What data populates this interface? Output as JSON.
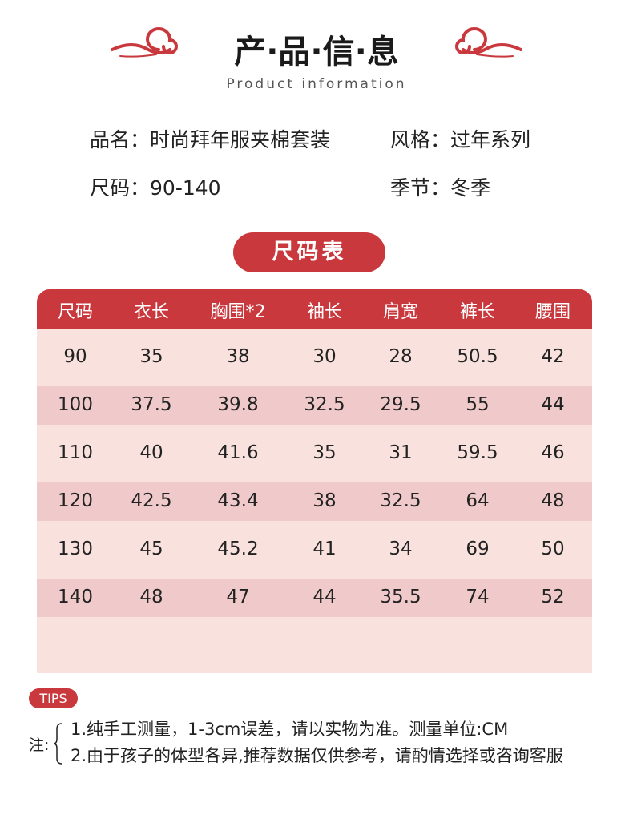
{
  "header": {
    "title": "产·品·信·息",
    "subtitle": "Product information"
  },
  "info": [
    {
      "label": "品名：",
      "value": "时尚拜年服夹棉套装"
    },
    {
      "label": "风格：",
      "value": "过年系列"
    },
    {
      "label": "尺码：",
      "value": "90-140"
    },
    {
      "label": "季节：",
      "value": "冬季"
    }
  ],
  "size_chart": {
    "title": "尺码表",
    "headers": [
      "尺码",
      "衣长",
      "胸围*2",
      "袖长",
      "肩宽",
      "裤长",
      "腰围"
    ],
    "rows": [
      [
        "90",
        "35",
        "38",
        "30",
        "28",
        "50.5",
        "42"
      ],
      [
        "100",
        "37.5",
        "39.8",
        "32.5",
        "29.5",
        "55",
        "44"
      ],
      [
        "110",
        "40",
        "41.6",
        "35",
        "31",
        "59.5",
        "46"
      ],
      [
        "120",
        "42.5",
        "43.4",
        "38",
        "32.5",
        "64",
        "48"
      ],
      [
        "130",
        "45",
        "45.2",
        "41",
        "34",
        "69",
        "50"
      ],
      [
        "140",
        "48",
        "47",
        "44",
        "35.5",
        "74",
        "52"
      ]
    ]
  },
  "tips": {
    "badge": "TIPS",
    "prefix": "注:",
    "lines": [
      "1.纯手工测量，1-3cm误差，请以实物为准。测量单位:CM",
      "2.由于孩子的体型各异,推荐数据仅供参考，请酌情选择或咨询客服"
    ]
  }
}
